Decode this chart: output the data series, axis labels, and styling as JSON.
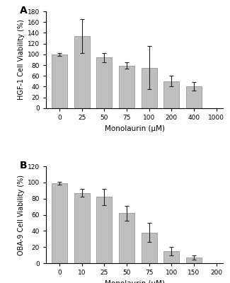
{
  "panel_A": {
    "label": "A",
    "ylabel": "HGF-1 Cell Viability (%)",
    "xlabel": "Monolaurin (μM)",
    "x_tick_labels": [
      "0",
      "25",
      "50",
      "75",
      "100",
      "200",
      "400",
      "1000"
    ],
    "bar_labels": [
      "0",
      "25",
      "50",
      "75",
      "100",
      "200",
      "400"
    ],
    "bar_heights": [
      100,
      134,
      94,
      79,
      75,
      50,
      41
    ],
    "bar_errors": [
      3,
      32,
      8,
      6,
      40,
      10,
      8
    ],
    "ylim": [
      0,
      180
    ],
    "yticks": [
      0,
      20,
      40,
      60,
      80,
      100,
      120,
      140,
      160,
      180
    ],
    "bar_color": "#c0bfbf",
    "error_color": "#222222"
  },
  "panel_B": {
    "label": "B",
    "ylabel": "OBA-9 Cell Viability (%)",
    "xlabel": "Monolaurin (μM)",
    "x_tick_labels": [
      "0",
      "10",
      "25",
      "50",
      "75",
      "100",
      "150",
      "200"
    ],
    "bar_labels": [
      "0",
      "10",
      "25",
      "50",
      "75",
      "100",
      "150"
    ],
    "bar_heights": [
      99,
      87,
      82,
      62,
      38,
      15,
      7
    ],
    "bar_errors": [
      2,
      5,
      10,
      9,
      12,
      5,
      3
    ],
    "ylim": [
      0,
      120
    ],
    "yticks": [
      0,
      20,
      40,
      60,
      80,
      100,
      120
    ],
    "bar_color": "#c0bfbf",
    "error_color": "#222222"
  }
}
